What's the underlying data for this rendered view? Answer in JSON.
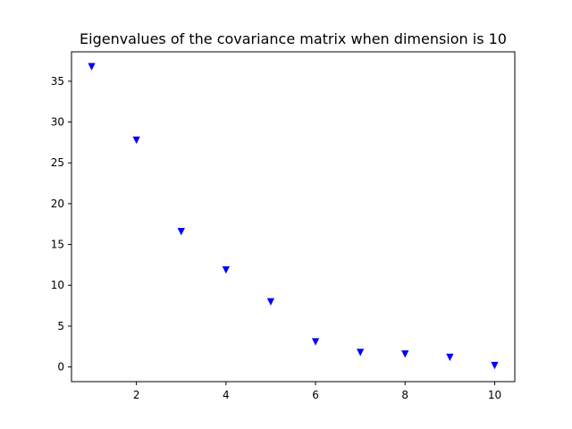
{
  "chart_data": {
    "type": "scatter",
    "title": "Eigenvalues of the covariance matrix when dimension is 10",
    "xlabel": "",
    "ylabel": "",
    "xlim": [
      0.55,
      10.45
    ],
    "ylim": [
      -1.8,
      38.6
    ],
    "xticks": [
      2,
      4,
      6,
      8,
      10
    ],
    "yticks": [
      0,
      5,
      10,
      15,
      20,
      25,
      30,
      35
    ],
    "grid": false,
    "marker": "triangle-down",
    "marker_color": "#0000ff",
    "series": [
      {
        "x": [
          1,
          2,
          3,
          4,
          5,
          6,
          7,
          8,
          9,
          10
        ],
        "y": [
          36.8,
          27.8,
          16.6,
          11.9,
          8.0,
          3.1,
          1.8,
          1.6,
          1.2,
          0.2
        ]
      }
    ]
  }
}
